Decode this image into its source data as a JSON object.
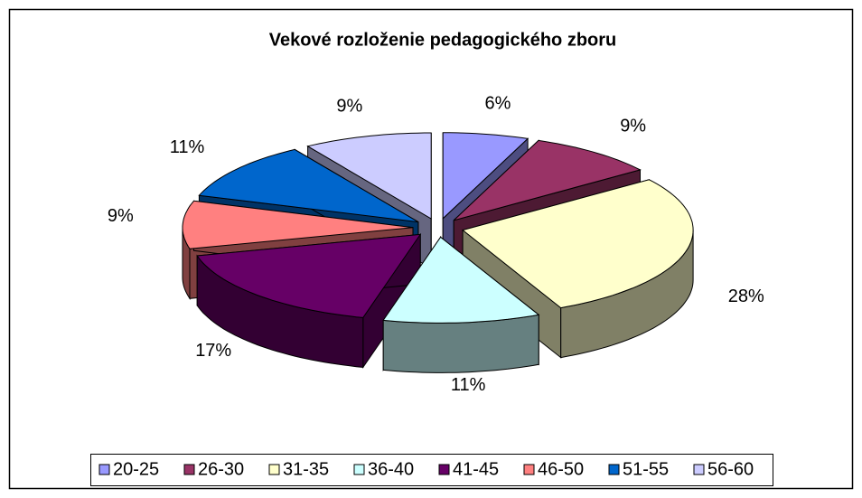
{
  "chart_data": {
    "type": "pie3d",
    "title": "Vekové rozloženie pedagogického zboru",
    "categories": [
      "20-25",
      "26-30",
      "31-35",
      "36-40",
      "41-45",
      "46-50",
      "51-55",
      "56-60"
    ],
    "values": [
      6,
      9,
      28,
      11,
      17,
      9,
      11,
      9
    ],
    "value_labels": [
      "6%",
      "9%",
      "28%",
      "11%",
      "17%",
      "9%",
      "11%",
      "9%"
    ],
    "colors": [
      "#9999ff",
      "#993366",
      "#ffffcc",
      "#ccffff",
      "#660066",
      "#ff8080",
      "#0066cc",
      "#ccccff"
    ],
    "legend": "bottom"
  }
}
